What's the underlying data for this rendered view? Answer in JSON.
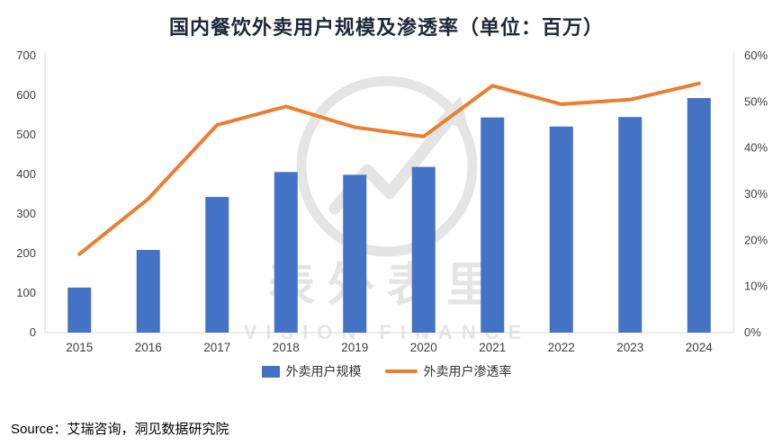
{
  "title": "国内餐饮外卖用户规模及渗透率（单位：百万）",
  "source": "Source：艾瑞咨询，洞见数据研究院",
  "watermark": {
    "name": "表外表里",
    "subtitle": "VISION FINANCE"
  },
  "colors": {
    "bar": "#4472C4",
    "line": "#ED7D31",
    "axis_text": "#3f3f3f",
    "axis_line": "#d9d9d9",
    "title": "#20283a",
    "watermark": "#e4e4e4"
  },
  "chart_data": {
    "type": "bar",
    "subtype": "bar+line combo",
    "title": "国内餐饮外卖用户规模及渗透率（单位：百万）",
    "categories": [
      "2015",
      "2016",
      "2017",
      "2018",
      "2019",
      "2020",
      "2021",
      "2022",
      "2023",
      "2024"
    ],
    "series": [
      {
        "name": "外卖用户规模",
        "type": "bar",
        "axis": "left",
        "values": [
          114,
          209,
          343,
          406,
          399,
          419,
          544,
          521,
          545,
          593
        ]
      },
      {
        "name": "外卖用户渗透率",
        "type": "line",
        "axis": "right",
        "values": [
          17,
          29,
          45,
          49,
          44.5,
          42.5,
          53.5,
          49.5,
          50.5,
          54
        ]
      }
    ],
    "left_axis": {
      "min": 0,
      "max": 700,
      "step": 100
    },
    "right_axis": {
      "min": 0,
      "max": 60,
      "step": 10,
      "suffix": "%"
    },
    "grid": false,
    "legend_position": "bottom"
  }
}
